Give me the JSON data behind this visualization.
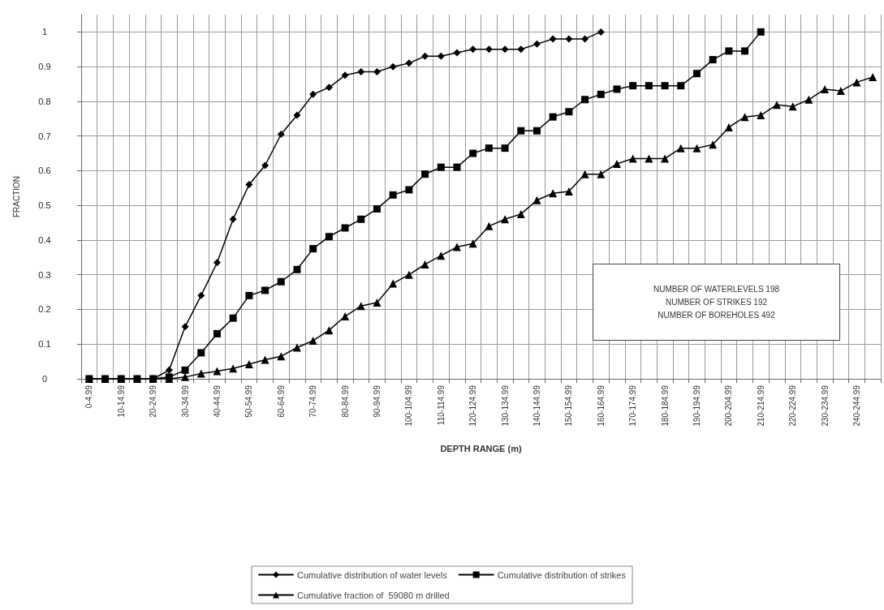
{
  "chart_data": {
    "type": "line",
    "xlabel": "DEPTH RANGE (m)",
    "ylabel": "FRACTION",
    "categories": [
      "0-4.99",
      null,
      "10-14.99",
      null,
      "20-24.99",
      null,
      "30-34.99",
      null,
      "40-44.99",
      null,
      "50-54.99",
      null,
      "60-64.99",
      null,
      "70-74.99",
      null,
      "80-84.99",
      null,
      "90-94.99",
      null,
      "100-104.99",
      null,
      "110-114.99",
      null,
      "120-124.99",
      null,
      "130-134.99",
      null,
      "140-144.99",
      null,
      "150-154.99",
      null,
      "160-164.99",
      null,
      "170-174.99",
      null,
      "180-184.99",
      null,
      "190-194.99",
      null,
      "200-204.99",
      null,
      "210-214.99",
      null,
      "220-224.99",
      null,
      "230-234.99",
      null,
      "240-244.99",
      null
    ],
    "series": [
      {
        "name": "Cumulative distribution of water levels",
        "color": "#000000",
        "marker": "diamond",
        "values": [
          0,
          0,
          0,
          0,
          0,
          0.025,
          0.15,
          0.24,
          0.335,
          0.46,
          0.56,
          0.615,
          0.705,
          0.76,
          0.82,
          0.84,
          0.875,
          0.885,
          0.885,
          0.9,
          0.91,
          0.93,
          0.93,
          0.94,
          0.95,
          0.95,
          0.95,
          0.95,
          0.965,
          0.98,
          0.98,
          0.98,
          1,
          null,
          null,
          null,
          null,
          null,
          null,
          null,
          null,
          null,
          null,
          null,
          null,
          null,
          null,
          null,
          null,
          null
        ]
      },
      {
        "name": "Cumulative distribution of strikes",
        "color": "#000000",
        "marker": "square",
        "values": [
          0,
          0,
          0,
          0,
          0,
          0.005,
          0.025,
          0.075,
          0.13,
          0.175,
          0.24,
          0.255,
          0.28,
          0.315,
          0.375,
          0.41,
          0.435,
          0.46,
          0.49,
          0.53,
          0.545,
          0.59,
          0.61,
          0.61,
          0.65,
          0.665,
          0.665,
          0.715,
          0.715,
          0.755,
          0.77,
          0.805,
          0.82,
          0.835,
          0.845,
          0.845,
          0.845,
          0.845,
          0.88,
          0.92,
          0.945,
          0.945,
          1,
          null,
          null,
          null,
          null,
          null,
          null,
          null
        ]
      },
      {
        "name": "Cumulative fraction of  59080 m drilled",
        "color": "#000000",
        "marker": "triangle",
        "values": [
          0,
          0,
          0,
          0,
          0,
          0,
          0.005,
          0.015,
          0.022,
          0.03,
          0.042,
          0.055,
          0.065,
          0.09,
          0.11,
          0.14,
          0.18,
          0.21,
          0.22,
          0.275,
          0.3,
          0.33,
          0.355,
          0.38,
          0.39,
          0.44,
          0.46,
          0.475,
          0.515,
          0.535,
          0.54,
          0.59,
          0.59,
          0.62,
          0.635,
          0.635,
          0.635,
          0.665,
          0.665,
          0.675,
          0.725,
          0.755,
          0.76,
          0.79,
          0.785,
          0.805,
          0.835,
          0.83,
          0.855,
          0.87
        ]
      }
    ],
    "ylim": [
      0,
      1.05
    ],
    "yticks": [
      0,
      0.1,
      0.2,
      0.3,
      0.4,
      0.5,
      0.6,
      0.7,
      0.8,
      0.9,
      1
    ],
    "grid": true,
    "legend": "bottom",
    "line_style": "solid",
    "annotations": [
      "NUMBER OF WATERLEVELS 198",
      "NUMBER OF STRIKES 192",
      "NUMBER OF BOREHOLES 492"
    ]
  }
}
